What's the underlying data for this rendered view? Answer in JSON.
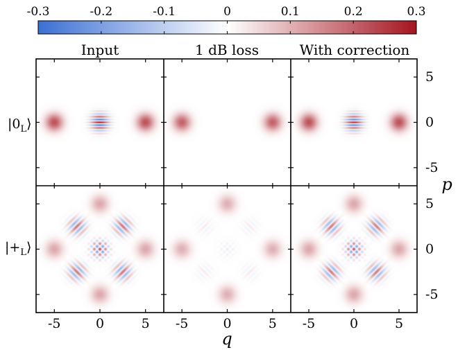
{
  "chart_data": {
    "type": "heatmap",
    "title": "",
    "colorbar": {
      "range": [
        -0.3,
        0.3
      ],
      "ticks": [
        "-0.3",
        "-0.2",
        "-0.1",
        "0",
        "0.1",
        "0.2",
        "0.3"
      ],
      "colors": {
        "negative": "#3b6fd4",
        "zero": "#ffffff",
        "positive": "#a5141f"
      }
    },
    "columns": [
      "Input",
      "1 dB loss",
      "With correction"
    ],
    "rows": [
      {
        "label": "|0",
        "subscript": "L",
        "close": "⟩",
        "state": "zero"
      },
      {
        "label": "|+",
        "subscript": "L",
        "close": "⟩",
        "state": "plus"
      }
    ],
    "xlabel": "q",
    "ylabel": "p",
    "xlim": [
      -7,
      7
    ],
    "ylim": [
      -7,
      7
    ],
    "xticks": [
      "-5",
      "0",
      "5"
    ],
    "yticks": [
      "5",
      "0",
      "-5"
    ],
    "panels": [
      {
        "row": 0,
        "col": 0,
        "state": "zero",
        "interference": 0.28,
        "lobe": 0.22
      },
      {
        "row": 0,
        "col": 1,
        "state": "zero",
        "interference": 0.0,
        "lobe": 0.2
      },
      {
        "row": 0,
        "col": 2,
        "state": "zero",
        "interference": 0.26,
        "lobe": 0.22
      },
      {
        "row": 1,
        "col": 0,
        "state": "plus",
        "interference": 0.22,
        "lobe": 0.11
      },
      {
        "row": 1,
        "col": 1,
        "state": "plus",
        "interference": 0.03,
        "lobe": 0.1
      },
      {
        "row": 1,
        "col": 2,
        "state": "plus",
        "interference": 0.21,
        "lobe": 0.11
      }
    ]
  }
}
